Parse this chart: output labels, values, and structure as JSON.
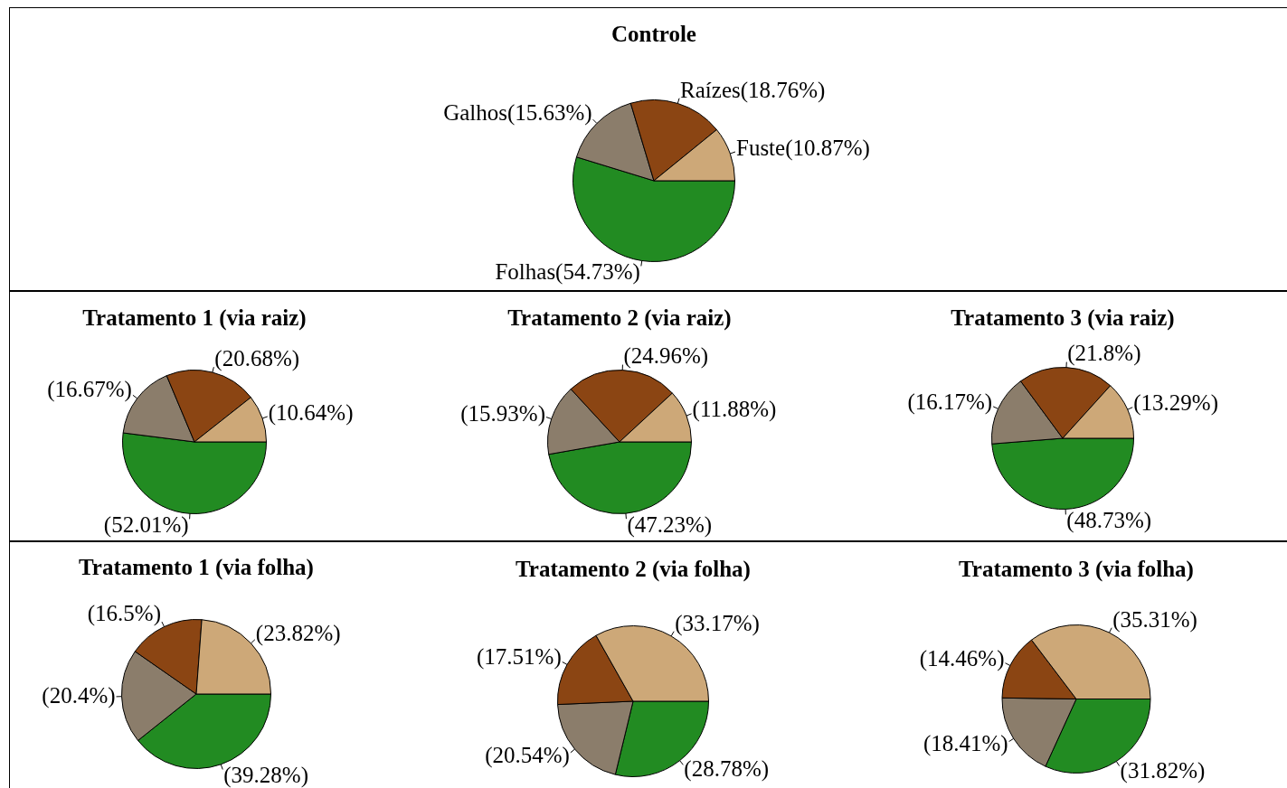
{
  "chart_data": [
    {
      "type": "pie",
      "title": "Controle",
      "categories": [
        "Folhas",
        "Galhos",
        "Raízes",
        "Fuste"
      ],
      "values": [
        54.73,
        15.63,
        18.76,
        10.87
      ],
      "value_labels": [
        "(54.73%)",
        "(15.63%)",
        "(18.76%)",
        "(10.87%)"
      ],
      "colors": [
        "#228b22",
        "#8b7d6b",
        "#8b4513",
        "#cda878"
      ],
      "legend": false
    },
    {
      "type": "pie",
      "title": "Tratamento 1 (via raiz)",
      "categories": [
        null,
        null,
        null,
        null
      ],
      "values": [
        52.01,
        16.67,
        20.68,
        10.64
      ],
      "value_labels": [
        "(52.01%)",
        "(16.67%)",
        "(20.68%)",
        "(10.64%)"
      ],
      "colors": [
        "#228b22",
        "#8b7d6b",
        "#8b4513",
        "#cda878"
      ],
      "legend": false
    },
    {
      "type": "pie",
      "title": "Tratamento 2 (via raiz)",
      "categories": [
        null,
        null,
        null,
        null
      ],
      "values": [
        47.23,
        15.93,
        24.96,
        11.88
      ],
      "value_labels": [
        "(47.23%)",
        "(15.93%)",
        "(24.96%)",
        "(11.88%)"
      ],
      "colors": [
        "#228b22",
        "#8b7d6b",
        "#8b4513",
        "#cda878"
      ],
      "legend": false
    },
    {
      "type": "pie",
      "title": "Tratamento 3 (via raiz)",
      "categories": [
        null,
        null,
        null,
        null
      ],
      "values": [
        48.73,
        16.17,
        21.8,
        13.29
      ],
      "value_labels": [
        "(48.73%)",
        "(16.17%)",
        "(21.8%)",
        "(13.29%)"
      ],
      "colors": [
        "#228b22",
        "#8b7d6b",
        "#8b4513",
        "#cda878"
      ],
      "legend": false
    },
    {
      "type": "pie",
      "title": "Tratamento 1 (via folha)",
      "categories": [
        null,
        null,
        null,
        null
      ],
      "values": [
        39.28,
        20.4,
        16.5,
        23.82
      ],
      "value_labels": [
        "(39.28%)",
        "(20.4%)",
        "(16.5%)",
        "(23.82%)"
      ],
      "colors": [
        "#228b22",
        "#8b7d6b",
        "#8b4513",
        "#cda878"
      ],
      "legend": false
    },
    {
      "type": "pie",
      "title": "Tratamento 2 (via folha)",
      "categories": [
        null,
        null,
        null,
        null
      ],
      "values": [
        28.78,
        20.54,
        17.51,
        33.17
      ],
      "value_labels": [
        "(28.78%)",
        "(20.54%)",
        "(17.51%)",
        "(33.17%)"
      ],
      "colors": [
        "#228b22",
        "#8b7d6b",
        "#8b4513",
        "#cda878"
      ],
      "legend": false
    },
    {
      "type": "pie",
      "title": "Tratamento 3 (via folha)",
      "categories": [
        null,
        null,
        null,
        null
      ],
      "values": [
        31.82,
        18.41,
        14.46,
        35.31
      ],
      "value_labels": [
        "(31.82%)",
        "(18.41%)",
        "(14.46%)",
        "(35.31%)"
      ],
      "colors": [
        "#228b22",
        "#8b7d6b",
        "#8b4513",
        "#cda878"
      ],
      "legend": false
    }
  ]
}
